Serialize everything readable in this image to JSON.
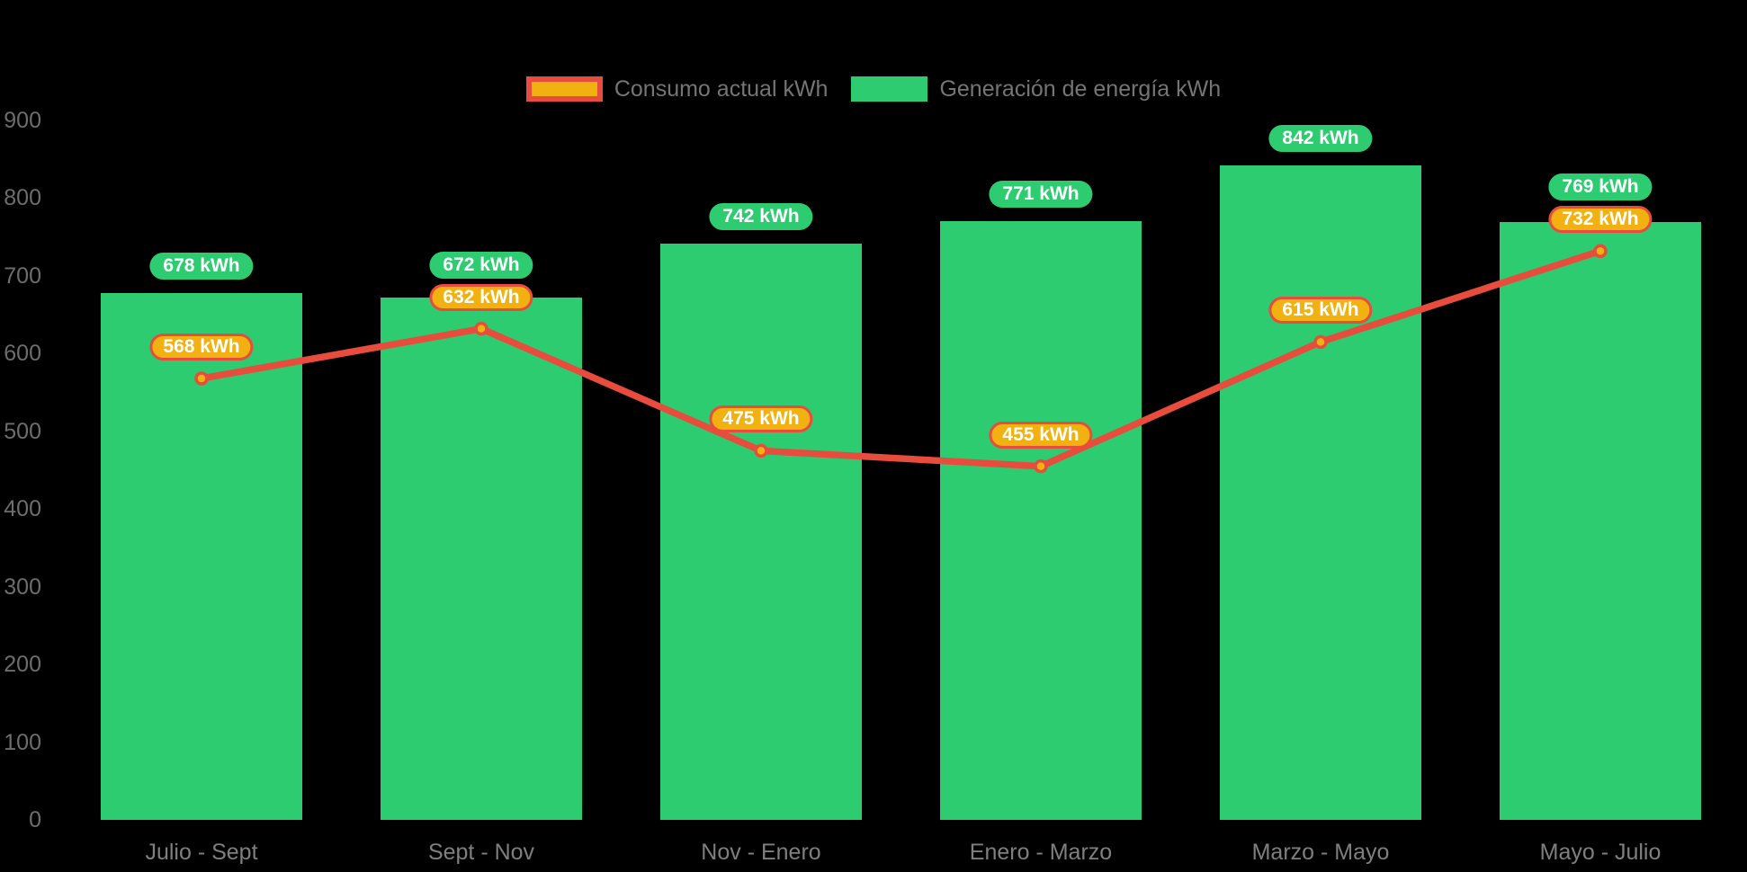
{
  "chart_data": {
    "type": "bar",
    "title": "",
    "xlabel": "",
    "ylabel": "",
    "unit": "kWh",
    "categories": [
      "Julio - Sept",
      "Sept - Nov",
      "Nov - Enero",
      "Enero - Marzo",
      "Marzo - Mayo",
      "Mayo - Julio"
    ],
    "series": [
      {
        "name": "Consumo actual kWh",
        "type": "line",
        "color": "#e74c3c",
        "marker_color": "#f1b211",
        "values": [
          568,
          632,
          475,
          455,
          615,
          732
        ],
        "data_labels": [
          "568 kWh",
          "632 kWh",
          "475 kWh",
          "455 kWh",
          "615 kWh",
          "732 kWh"
        ]
      },
      {
        "name": "Generación de energía kWh",
        "type": "bar",
        "color": "#2ecc71",
        "values": [
          678,
          672,
          742,
          771,
          842,
          769
        ],
        "data_labels": [
          "678 kWh",
          "672 kWh",
          "742 kWh",
          "771 kWh",
          "842 kWh",
          "769 kWh"
        ]
      }
    ],
    "ylim": [
      0,
      900
    ],
    "yticks": [
      0,
      100,
      200,
      300,
      400,
      500,
      600,
      700,
      800,
      900
    ],
    "grid": false,
    "legend_position": "top-center",
    "background_color": "#000000",
    "axis_text_color": "#7f7f7f",
    "badge_text_color": "#ffffff"
  }
}
